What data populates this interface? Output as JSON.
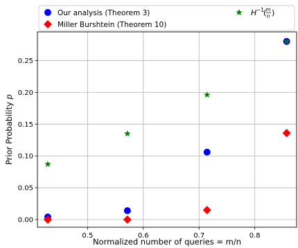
{
  "chart_data": {
    "type": "scatter",
    "title": "",
    "xlabel": "Normalized number of queries = m/n",
    "ylabel": "Prior Probability p",
    "xlim": [
      0.41,
      0.875
    ],
    "ylim": [
      -0.012,
      0.295
    ],
    "xticks": [
      0.5,
      0.6,
      0.7,
      0.8
    ],
    "xtick_labels": [
      "0.5",
      "0.6",
      "0.7",
      "0.8"
    ],
    "yticks": [
      0.0,
      0.05,
      0.1,
      0.15,
      0.2,
      0.25
    ],
    "ytick_labels": [
      "0.00",
      "0.05",
      "0.10",
      "0.15",
      "0.20",
      "0.25"
    ],
    "grid": true,
    "legend_position": "top",
    "series": [
      {
        "name": "Our analysis (Theorem 3)",
        "marker": "circle",
        "color": "#0000ff",
        "x": [
          0.4286,
          0.5714,
          0.7143,
          0.8571
        ],
        "y": [
          0.004,
          0.014,
          0.106,
          0.28
        ]
      },
      {
        "name": "Miller Burshtein (Theorem 10)",
        "marker": "diamond",
        "color": "#ff0000",
        "x": [
          0.4286,
          0.5714,
          0.7143,
          0.8571
        ],
        "y": [
          0.0,
          0.0,
          0.015,
          0.136
        ]
      },
      {
        "name": "H^{-1}(m/n)",
        "marker": "star",
        "color": "#008000",
        "x": [
          0.4286,
          0.5714,
          0.7143,
          0.8571
        ],
        "y": [
          0.087,
          0.135,
          0.196,
          0.28
        ]
      }
    ]
  }
}
